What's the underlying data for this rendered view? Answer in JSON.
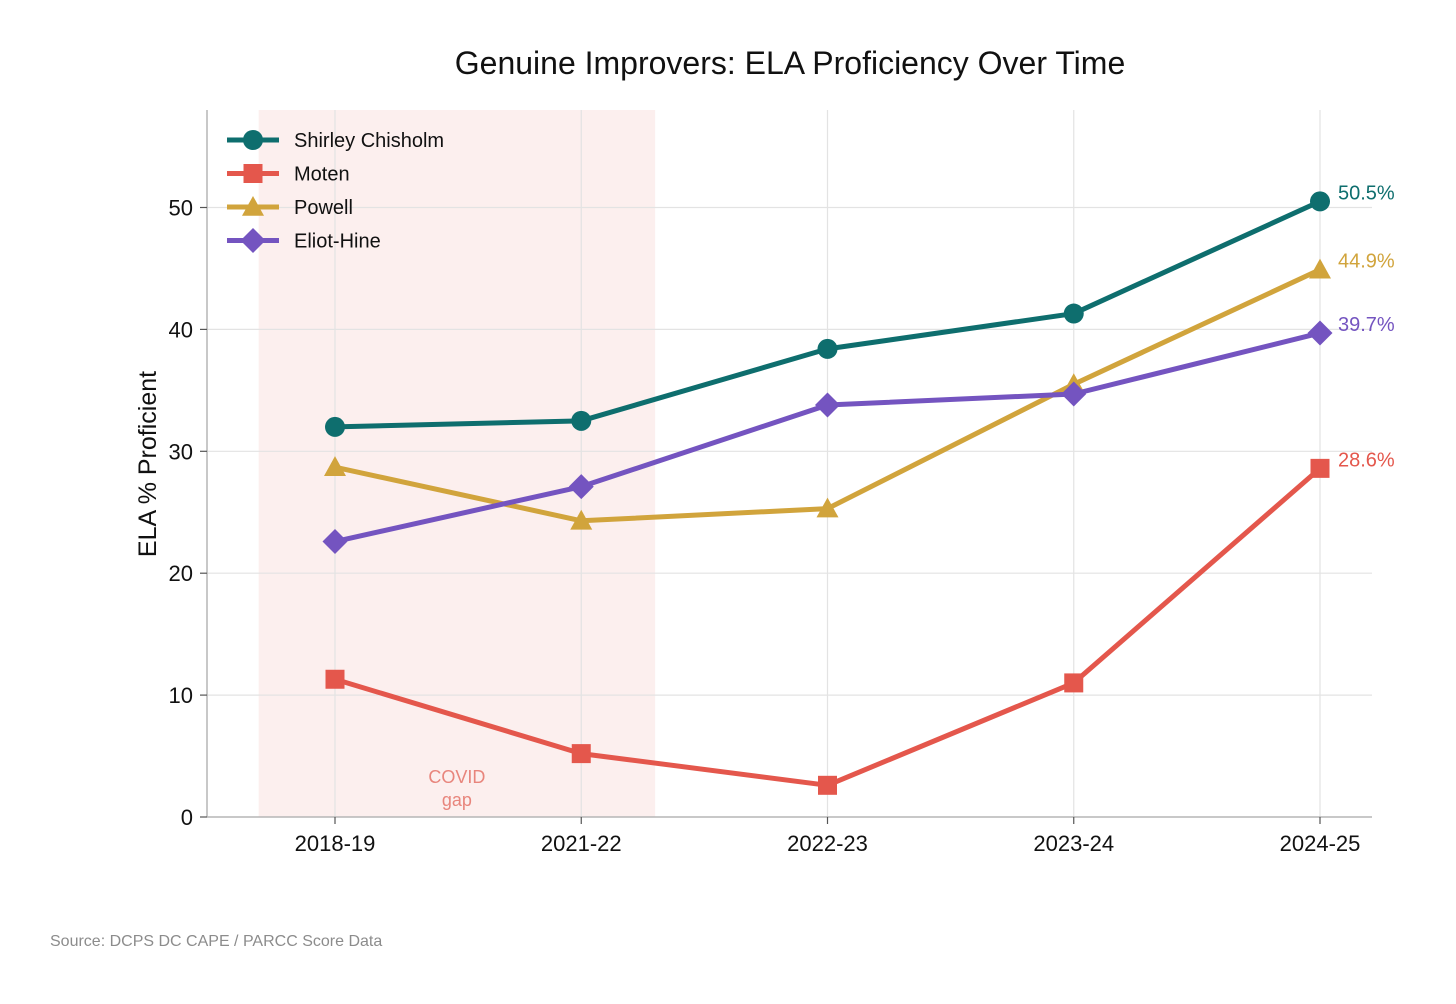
{
  "chart_data": {
    "type": "line",
    "title": "Genuine Improvers: ELA Proficiency Over Time",
    "xlabel": "",
    "ylabel": "ELA % Proficient",
    "categories": [
      "2018-19",
      "2021-22",
      "2022-23",
      "2023-24",
      "2024-25"
    ],
    "ylim": [
      0,
      58
    ],
    "yticks": [
      0,
      10,
      20,
      30,
      40,
      50
    ],
    "grid": true,
    "legend_position": "top-left",
    "series": [
      {
        "name": "Shirley Chisholm",
        "color": "#0e6e6e",
        "marker": "circle",
        "values": [
          32.0,
          32.5,
          38.4,
          41.3,
          50.5
        ],
        "end_label": "50.5%"
      },
      {
        "name": "Moten",
        "color": "#e4574c",
        "marker": "square",
        "values": [
          11.3,
          5.2,
          2.6,
          11.0,
          28.6
        ],
        "end_label": "28.6%"
      },
      {
        "name": "Powell",
        "color": "#d1a43c",
        "marker": "triangle",
        "values": [
          28.7,
          24.3,
          25.3,
          35.5,
          44.9
        ],
        "end_label": "44.9%"
      },
      {
        "name": "Eliot-Hine",
        "color": "#7454c0",
        "marker": "diamond",
        "values": [
          22.6,
          27.1,
          33.8,
          34.7,
          39.7
        ],
        "end_label": "39.7%"
      }
    ],
    "shaded_region": {
      "from": "2018-19",
      "to": "2021-22",
      "color": "#fcefee",
      "label_line1": "COVID",
      "label_line2": "gap",
      "label_color": "#e8857c"
    }
  },
  "source_note": "Source: DCPS DC CAPE / PARCC Score Data"
}
